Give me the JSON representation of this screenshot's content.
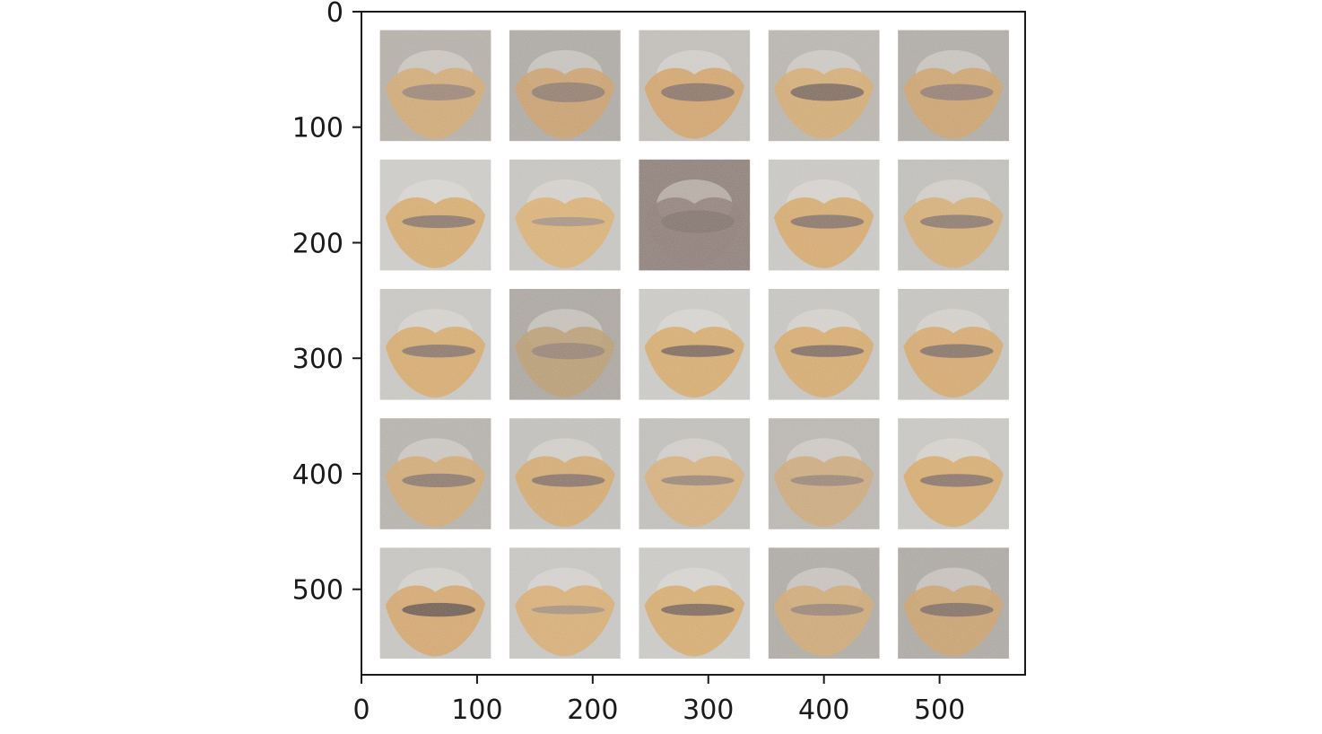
{
  "chart_data": {
    "type": "heatmap",
    "description_kind": "image-grid",
    "title": "",
    "xlabel": "",
    "ylabel": "",
    "xlim": [
      0,
      574
    ],
    "ylim": [
      574,
      0
    ],
    "x_ticks": [
      0,
      100,
      200,
      300,
      400,
      500
    ],
    "y_ticks": [
      0,
      100,
      200,
      300,
      400,
      500
    ],
    "x_tick_labels": [
      "0",
      "100",
      "200",
      "300",
      "400",
      "500"
    ],
    "y_tick_labels": [
      "0",
      "100",
      "200",
      "300",
      "400",
      "500"
    ],
    "grid": false,
    "tiles": {
      "rows": 5,
      "cols": 5,
      "tile_size": 96,
      "gap": 16,
      "offset": 16
    },
    "tile_images": [
      [
        {
          "bg": "#b1aca4",
          "lip": "#cfa56e",
          "inner": "#8f7e76",
          "open": 0.55
        },
        {
          "bg": "#aaa6a1",
          "lip": "#c99c67",
          "inner": "#86756f",
          "open": 0.75
        },
        {
          "bg": "#bdbab5",
          "lip": "#cf9f62",
          "inner": "#7d6b66",
          "open": 0.65
        },
        {
          "bg": "#b5b1ab",
          "lip": "#d2a76c",
          "inner": "#6f5f5b",
          "open": 0.6
        },
        {
          "bg": "#aca8a2",
          "lip": "#cb9f66",
          "inner": "#887672",
          "open": 0.55
        }
      ],
      [
        {
          "bg": "#c9c8c5",
          "lip": "#d4a563",
          "inner": "#7d6d69",
          "open": 0.35
        },
        {
          "bg": "#c3c1bd",
          "lip": "#d8ac6c",
          "inner": "#9c8d84",
          "open": 0.15
        },
        {
          "bg": "#8c7c76",
          "lip": "#8c7a74",
          "inner": "#7e6e69",
          "open": 0.9
        },
        {
          "bg": "#c6c4c1",
          "lip": "#d3a463",
          "inner": "#7a6a66",
          "open": 0.4
        },
        {
          "bg": "#bdbbb7",
          "lip": "#d3a86c",
          "inner": "#7f6e6a",
          "open": 0.4
        }
      ],
      [
        {
          "bg": "#c5c3c0",
          "lip": "#d4a563",
          "inner": "#7d6c68",
          "open": 0.35
        },
        {
          "bg": "#a7a29c",
          "lip": "#b8996f",
          "inner": "#8f7d73",
          "open": 0.55
        },
        {
          "bg": "#c7c6c3",
          "lip": "#d4a563",
          "inner": "#6e5e5a",
          "open": 0.3
        },
        {
          "bg": "#c3c1be",
          "lip": "#d4a563",
          "inner": "#726260",
          "open": 0.3
        },
        {
          "bg": "#c2c0bc",
          "lip": "#d3a363",
          "inner": "#776764",
          "open": 0.4
        }
      ],
      [
        {
          "bg": "#b2aea8",
          "lip": "#cfa56c",
          "inner": "#7f6e6a",
          "open": 0.4
        },
        {
          "bg": "#bebcb8",
          "lip": "#d2a466",
          "inner": "#7a6a66",
          "open": 0.35
        },
        {
          "bg": "#bdbbb7",
          "lip": "#d4ab72",
          "inner": "#8d7c74",
          "open": 0.2
        },
        {
          "bg": "#b6b3ae",
          "lip": "#caa474",
          "inner": "#8f7e76",
          "open": 0.25
        },
        {
          "bg": "#c5c3bf",
          "lip": "#d4a563",
          "inner": "#7a6a66",
          "open": 0.35
        }
      ],
      [
        {
          "bg": "#c3c1bd",
          "lip": "#d1a163",
          "inner": "#5e4f4b",
          "open": 0.4
        },
        {
          "bg": "#c4c2bf",
          "lip": "#d6a86a",
          "inner": "#9b8a80",
          "open": 0.12
        },
        {
          "bg": "#c7c6c3",
          "lip": "#d4a563",
          "inner": "#6d5d59",
          "open": 0.3
        },
        {
          "bg": "#aba7a1",
          "lip": "#cda56f",
          "inner": "#8e7d75",
          "open": 0.3
        },
        {
          "bg": "#a9a59f",
          "lip": "#c99e67",
          "inner": "#766561",
          "open": 0.4
        }
      ]
    ]
  }
}
